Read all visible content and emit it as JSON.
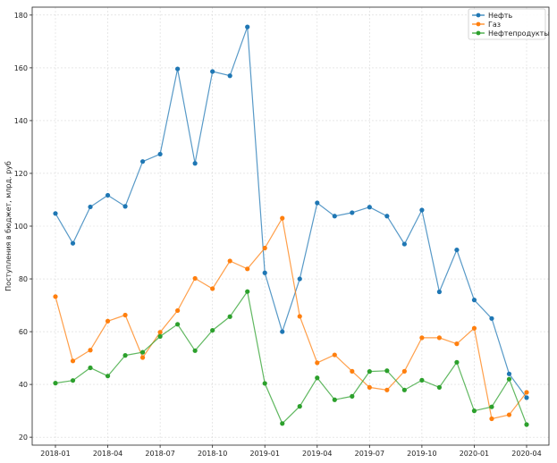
{
  "chart_data": {
    "type": "line",
    "title": "",
    "xlabel": "",
    "ylabel": "Поступления в бюджет, млрд. руб",
    "x": [
      "2018-01",
      "2018-02",
      "2018-03",
      "2018-04",
      "2018-05",
      "2018-06",
      "2018-07",
      "2018-08",
      "2018-09",
      "2018-10",
      "2018-11",
      "2018-12",
      "2019-01",
      "2019-02",
      "2019-03",
      "2019-04",
      "2019-05",
      "2019-06",
      "2019-07",
      "2019-08",
      "2019-09",
      "2019-10",
      "2019-11",
      "2019-12",
      "2020-01",
      "2020-02",
      "2020-03",
      "2020-04"
    ],
    "x_ticks": [
      "2018-01",
      "2018-04",
      "2018-07",
      "2018-10",
      "2019-01",
      "2019-04",
      "2019-07",
      "2019-10",
      "2020-01",
      "2020-04"
    ],
    "ylim": [
      17,
      183
    ],
    "y_ticks": [
      20,
      40,
      60,
      80,
      100,
      120,
      140,
      160,
      180
    ],
    "grid": true,
    "legend_position": "top-right",
    "series": [
      {
        "name": "Нефть",
        "color": "#1f77b4",
        "values": [
          104.8,
          93.5,
          107.3,
          111.7,
          107.5,
          124.5,
          127.3,
          159.6,
          123.8,
          158.6,
          157.0,
          175.5,
          82.3,
          60.0,
          80.0,
          108.8,
          103.8,
          105.1,
          107.2,
          103.8,
          93.2,
          106.1,
          75.1,
          91.0,
          72.0,
          65.0,
          44.0,
          35.0
        ]
      },
      {
        "name": "Газ",
        "color": "#ff7f0e",
        "values": [
          73.3,
          48.9,
          53.0,
          64.0,
          66.3,
          50.2,
          59.8,
          68.0,
          80.2,
          76.3,
          86.8,
          83.8,
          91.7,
          103.0,
          65.8,
          48.2,
          51.2,
          45.0,
          38.9,
          37.9,
          45.0,
          57.7,
          57.7,
          55.4,
          61.3,
          27.0,
          28.5,
          37.0
        ]
      },
      {
        "name": "Нефтепродукты",
        "color": "#2ca02c",
        "values": [
          40.5,
          41.5,
          46.3,
          43.2,
          51.0,
          52.2,
          58.2,
          62.8,
          52.8,
          60.5,
          65.7,
          75.2,
          40.4,
          25.2,
          31.7,
          42.5,
          34.2,
          35.5,
          44.9,
          45.2,
          37.9,
          41.6,
          38.9,
          48.4,
          30.0,
          31.5,
          42.0,
          24.8
        ]
      }
    ]
  }
}
